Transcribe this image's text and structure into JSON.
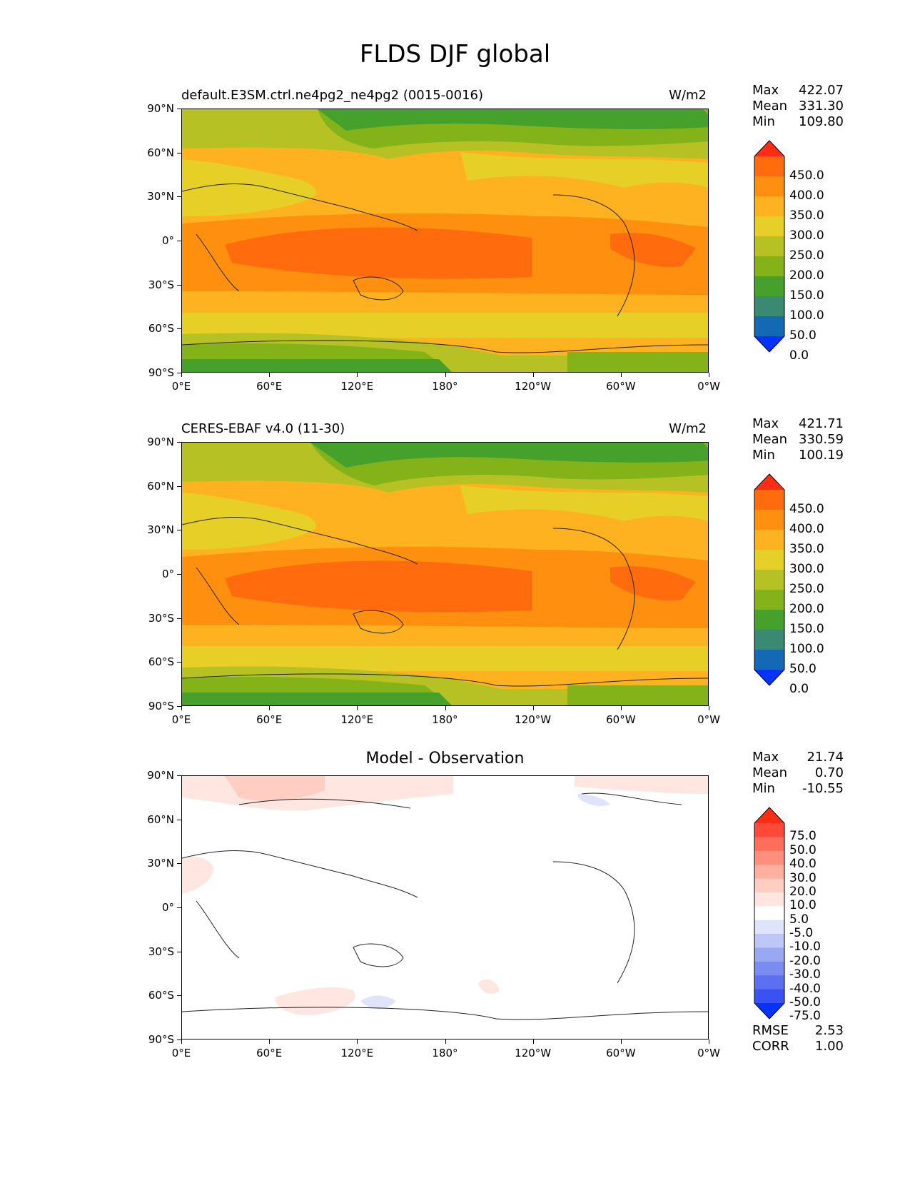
{
  "title": "FLDS DJF global",
  "x_ticks": [
    "0°E",
    "60°E",
    "120°E",
    "180°",
    "120°W",
    "60°W",
    "0°W"
  ],
  "y_ticks": [
    "90°N",
    "60°N",
    "30°N",
    "0°",
    "30°S",
    "60°S",
    "90°S"
  ],
  "panels": [
    {
      "title_left": "default.E3SM.ctrl.ne4pg2_ne4pg2 (0015-0016)",
      "title_right": "W/m2",
      "stats": [
        {
          "k": "Max",
          "v": "422.07"
        },
        {
          "k": "Mean",
          "v": "331.30"
        },
        {
          "k": "Min",
          "v": "109.80"
        }
      ],
      "colorbar": {
        "labels": [
          "450.0",
          "400.0",
          "350.0",
          "300.0",
          "250.0",
          "200.0",
          "150.0",
          "100.0",
          "50.0",
          "0.0"
        ],
        "colors": [
          "#ff2d16",
          "#ff6b0d",
          "#ff8f0e",
          "#ffb21f",
          "#e6cf26",
          "#b6c124",
          "#84b219",
          "#46a02c",
          "#3a8a73",
          "#1469b5",
          "#0433ff"
        ]
      }
    },
    {
      "title_left": "CERES-EBAF v4.0 (11-30)",
      "title_right": "W/m2",
      "stats": [
        {
          "k": "Max",
          "v": "421.71"
        },
        {
          "k": "Mean",
          "v": "330.59"
        },
        {
          "k": "Min",
          "v": "100.19"
        }
      ],
      "colorbar": {
        "labels": [
          "450.0",
          "400.0",
          "350.0",
          "300.0",
          "250.0",
          "200.0",
          "150.0",
          "100.0",
          "50.0",
          "0.0"
        ],
        "colors": [
          "#ff2d16",
          "#ff6b0d",
          "#ff8f0e",
          "#ffb21f",
          "#e6cf26",
          "#b6c124",
          "#84b219",
          "#46a02c",
          "#3a8a73",
          "#1469b5",
          "#0433ff"
        ]
      }
    },
    {
      "title_center": "Model - Observation",
      "stats": [
        {
          "k": "Max",
          "v": "21.74"
        },
        {
          "k": "Mean",
          "v": "0.70"
        },
        {
          "k": "Min",
          "v": "-10.55"
        }
      ],
      "colorbar": {
        "labels": [
          "75.0",
          "50.0",
          "40.0",
          "30.0",
          "20.0",
          "10.0",
          "5.0",
          "-5.0",
          "-10.0",
          "-20.0",
          "-30.0",
          "-40.0",
          "-50.0",
          "-75.0"
        ],
        "colors": [
          "#ff2d16",
          "#ff4a3a",
          "#ff6e5a",
          "#ff8f7b",
          "#ffaf9e",
          "#ffcdc2",
          "#ffe6e0",
          "#ffffff",
          "#dfe4fb",
          "#bcc6f7",
          "#99a8f3",
          "#7b8cf0",
          "#5b6ff0",
          "#3a52f3",
          "#0433ff"
        ]
      },
      "rmse_label": "RMSE",
      "rmse": "2.53",
      "corr_label": "CORR",
      "corr": "1.00"
    }
  ]
}
